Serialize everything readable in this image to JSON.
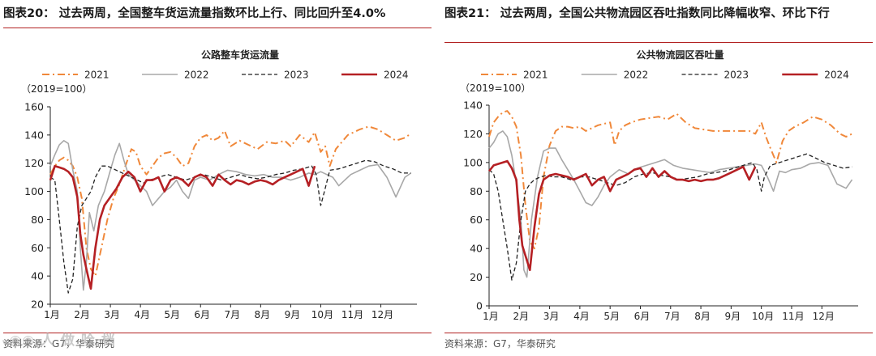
{
  "watermark": "ᵥ◉◉ 人 做 哈 档",
  "panels": [
    {
      "figure_title": "图表20： 过去两周，全国整车货运流量指数环比上行、同比回升至4.0%",
      "source": "资料来源：G7，华泰研究",
      "chart_data": {
        "type": "line",
        "title": "公路整车货运流量",
        "unit_label": "（2019=100）",
        "ylim": [
          20,
          160
        ],
        "yticks": [
          20,
          40,
          60,
          80,
          100,
          120,
          140,
          160
        ],
        "xticks": [
          "1月",
          "2月",
          "3月",
          "4月",
          "5月",
          "6月",
          "7月",
          "8月",
          "9月",
          "10月",
          "11月",
          "12月"
        ],
        "xlim": [
          1,
          13.2
        ],
        "legend_position": "top",
        "series": [
          {
            "name": "2021",
            "color": "#f0883a",
            "style": "dashdot",
            "x": [
              1.0,
              1.15,
              1.3,
              1.45,
              1.6,
              1.75,
              1.9,
              2.05,
              2.2,
              2.35,
              2.5,
              2.7,
              2.9,
              3.1,
              3.3,
              3.5,
              3.7,
              3.85,
              4.0,
              4.2,
              4.4,
              4.6,
              4.8,
              5.0,
              5.2,
              5.4,
              5.6,
              5.8,
              6.0,
              6.2,
              6.4,
              6.6,
              6.8,
              7.0,
              7.3,
              7.6,
              7.9,
              8.2,
              8.5,
              8.8,
              9.0,
              9.3,
              9.6,
              9.8,
              10.0,
              10.15,
              10.3,
              10.5,
              10.7,
              10.9,
              11.1,
              11.3,
              11.6,
              11.9,
              12.2,
              12.5,
              12.8,
              13.0
            ],
            "y": [
              112,
              118,
              122,
              124,
              122,
              118,
              110,
              95,
              60,
              45,
              40,
              60,
              80,
              95,
              105,
              118,
              130,
              128,
              118,
              112,
              118,
              124,
              127,
              128,
              124,
              118,
              120,
              132,
              138,
              140,
              136,
              138,
              143,
              132,
              136,
              133,
              130,
              135,
              134,
              136,
              132,
              140,
              135,
              142,
              128,
              132,
              118,
              130,
              135,
              140,
              142,
              144,
              146,
              144,
              140,
              136,
              138,
              141
            ]
          },
          {
            "name": "2022",
            "color": "#a8a8a8",
            "style": "solid",
            "x": [
              1.0,
              1.15,
              1.3,
              1.45,
              1.6,
              1.75,
              1.9,
              2.0,
              2.1,
              2.2,
              2.3,
              2.45,
              2.6,
              2.8,
              3.0,
              3.15,
              3.3,
              3.45,
              3.6,
              3.8,
              4.0,
              4.2,
              4.4,
              4.6,
              4.8,
              5.0,
              5.2,
              5.4,
              5.6,
              5.8,
              6.0,
              6.3,
              6.6,
              6.9,
              7.2,
              7.5,
              7.8,
              8.1,
              8.4,
              8.7,
              9.0,
              9.3,
              9.6,
              9.8,
              10.0,
              10.2,
              10.4,
              10.6,
              10.8,
              11.0,
              11.3,
              11.6,
              11.9,
              12.2,
              12.5,
              12.8,
              13.0
            ],
            "y": [
              118,
              126,
              133,
              136,
              134,
              115,
              100,
              60,
              30,
              50,
              85,
              72,
              90,
              100,
              115,
              126,
              134,
              122,
              112,
              108,
              104,
              100,
              90,
              95,
              100,
              103,
              108,
              100,
              95,
              108,
              110,
              108,
              112,
              115,
              114,
              112,
              111,
              112,
              110,
              110,
              108,
              110,
              113,
              112,
              114,
              112,
              110,
              104,
              108,
              112,
              115,
              118,
              119,
              110,
              96,
              110,
              113
            ]
          },
          {
            "name": "2023",
            "color": "#222222",
            "style": "dashed",
            "x": [
              1.0,
              1.15,
              1.3,
              1.45,
              1.6,
              1.75,
              1.9,
              2.05,
              2.2,
              2.35,
              2.5,
              2.7,
              2.9,
              3.1,
              3.3,
              3.5,
              3.7,
              3.9,
              4.1,
              4.3,
              4.6,
              4.9,
              5.2,
              5.5,
              5.8,
              6.1,
              6.4,
              6.7,
              7.0,
              7.3,
              7.6,
              7.9,
              8.2,
              8.5,
              8.8,
              9.1,
              9.4,
              9.7,
              9.85,
              10.0,
              10.1,
              10.3,
              10.6,
              10.9,
              11.2,
              11.5,
              11.8,
              12.1,
              12.4,
              12.7,
              13.0
            ],
            "y": [
              110,
              108,
              80,
              50,
              28,
              38,
              75,
              90,
              95,
              100,
              110,
              118,
              118,
              116,
              114,
              112,
              110,
              108,
              106,
              108,
              110,
              112,
              110,
              108,
              110,
              112,
              110,
              108,
              110,
              112,
              110,
              109,
              110,
              112,
              113,
              115,
              116,
              118,
              112,
              90,
              98,
              115,
              116,
              118,
              120,
              122,
              121,
              118,
              116,
              113,
              113
            ]
          },
          {
            "name": "2024",
            "color": "#b52024",
            "style": "solid-thick",
            "x": [
              1.0,
              1.15,
              1.3,
              1.45,
              1.6,
              1.75,
              1.9,
              2.0,
              2.1,
              2.2,
              2.35,
              2.5,
              2.65,
              2.8,
              3.0,
              3.2,
              3.4,
              3.6,
              3.8,
              4.0,
              4.2,
              4.4,
              4.6,
              4.8,
              5.0,
              5.2,
              5.4,
              5.6,
              5.8,
              6.0,
              6.2,
              6.4,
              6.6,
              6.8,
              7.0,
              7.2,
              7.4,
              7.6,
              7.8,
              8.0,
              8.2,
              8.4,
              8.6,
              8.8,
              9.0,
              9.2,
              9.4,
              9.6,
              9.8
            ],
            "y": [
              108,
              118,
              117,
              116,
              114,
              110,
              96,
              70,
              55,
              45,
              31,
              60,
              80,
              90,
              96,
              102,
              110,
              114,
              110,
              100,
              108,
              108,
              110,
              100,
              108,
              110,
              108,
              104,
              110,
              112,
              110,
              104,
              112,
              108,
              105,
              108,
              107,
              105,
              107,
              108,
              107,
              105,
              108,
              110,
              112,
              114,
              116,
              104,
              118
            ]
          }
        ]
      }
    },
    {
      "figure_title": "图表21： 过去两周，全国公共物流园区吞吐指数同比降幅收窄、环比下行",
      "source": "资料来源：G7，华泰研究",
      "chart_data": {
        "type": "line",
        "title": "公共物流园区吞吐量",
        "unit_label": "（2019=100）",
        "ylim": [
          0,
          140
        ],
        "yticks": [
          0,
          20,
          40,
          60,
          80,
          100,
          120,
          140
        ],
        "xticks": [
          "1月",
          "2月",
          "3月",
          "4月",
          "5月",
          "6月",
          "7月",
          "8月",
          "9月",
          "10月",
          "11月",
          "12月"
        ],
        "xlim": [
          1,
          13.2
        ],
        "legend_position": "top",
        "series": [
          {
            "name": "2021",
            "color": "#f0883a",
            "style": "dashdot",
            "x": [
              1.0,
              1.15,
              1.3,
              1.45,
              1.6,
              1.75,
              1.9,
              2.05,
              2.2,
              2.35,
              2.5,
              2.65,
              2.8,
              3.0,
              3.2,
              3.4,
              3.6,
              3.8,
              4.0,
              4.2,
              4.4,
              4.6,
              4.8,
              5.0,
              5.15,
              5.3,
              5.5,
              5.7,
              6.0,
              6.3,
              6.6,
              6.9,
              7.2,
              7.5,
              7.8,
              8.1,
              8.4,
              8.7,
              9.0,
              9.3,
              9.6,
              9.8,
              10.0,
              10.15,
              10.3,
              10.5,
              10.7,
              10.9,
              11.1,
              11.4,
              11.7,
              12.0,
              12.3,
              12.6,
              12.8,
              13.0
            ],
            "y": [
              118,
              128,
              132,
              135,
              136,
              132,
              125,
              105,
              70,
              45,
              40,
              55,
              90,
              112,
              122,
              125,
              125,
              124,
              125,
              122,
              124,
              126,
              127,
              128,
              112,
              122,
              126,
              128,
              130,
              131,
              132,
              130,
              134,
              128,
              124,
              123,
              122,
              122,
              122,
              122,
              122,
              120,
              128,
              118,
              110,
              100,
              115,
              122,
              125,
              128,
              132,
              130,
              126,
              120,
              118,
              120
            ]
          },
          {
            "name": "2022",
            "color": "#a8a8a8",
            "style": "solid",
            "x": [
              1.0,
              1.15,
              1.3,
              1.45,
              1.6,
              1.75,
              1.9,
              2.05,
              2.15,
              2.25,
              2.4,
              2.6,
              2.8,
              3.0,
              3.2,
              3.4,
              3.6,
              3.8,
              4.0,
              4.2,
              4.4,
              4.6,
              4.8,
              5.0,
              5.3,
              5.6,
              5.9,
              6.2,
              6.5,
              6.8,
              7.1,
              7.4,
              7.7,
              8.0,
              8.3,
              8.6,
              8.9,
              9.2,
              9.5,
              9.8,
              10.0,
              10.2,
              10.4,
              10.6,
              10.8,
              11.0,
              11.3,
              11.6,
              11.9,
              12.2,
              12.5,
              12.8,
              13.0
            ],
            "y": [
              110,
              114,
              120,
              122,
              118,
              105,
              85,
              60,
              25,
              20,
              60,
              90,
              108,
              110,
              110,
              102,
              95,
              88,
              80,
              72,
              70,
              76,
              84,
              90,
              95,
              92,
              96,
              98,
              100,
              102,
              98,
              96,
              95,
              94,
              93,
              95,
              96,
              97,
              98,
              99,
              98,
              90,
              80,
              94,
              93,
              95,
              96,
              99,
              100,
              98,
              85,
              82,
              88
            ]
          },
          {
            "name": "2023",
            "color": "#222222",
            "style": "dashed",
            "x": [
              1.0,
              1.15,
              1.3,
              1.45,
              1.6,
              1.75,
              1.9,
              2.05,
              2.2,
              2.35,
              2.5,
              2.7,
              2.9,
              3.1,
              3.4,
              3.7,
              4.0,
              4.3,
              4.6,
              4.9,
              5.2,
              5.5,
              5.8,
              6.1,
              6.4,
              6.7,
              7.0,
              7.3,
              7.6,
              7.9,
              8.2,
              8.5,
              8.8,
              9.1,
              9.4,
              9.7,
              9.85,
              10.0,
              10.1,
              10.3,
              10.6,
              10.9,
              11.2,
              11.5,
              11.8,
              12.1,
              12.4,
              12.7,
              13.0
            ],
            "y": [
              95,
              92,
              80,
              60,
              40,
              18,
              30,
              60,
              80,
              85,
              88,
              90,
              91,
              90,
              90,
              88,
              90,
              90,
              88,
              86,
              84,
              86,
              90,
              92,
              93,
              91,
              90,
              88,
              89,
              90,
              92,
              93,
              94,
              96,
              98,
              100,
              95,
              80,
              90,
              98,
              100,
              102,
              104,
              106,
              103,
              100,
              98,
              96,
              97
            ]
          },
          {
            "name": "2024",
            "color": "#b52024",
            "style": "solid-thick",
            "x": [
              1.0,
              1.15,
              1.3,
              1.45,
              1.6,
              1.75,
              1.9,
              2.0,
              2.1,
              2.2,
              2.35,
              2.5,
              2.65,
              2.8,
              3.0,
              3.2,
              3.4,
              3.6,
              3.8,
              4.0,
              4.2,
              4.4,
              4.6,
              4.8,
              5.0,
              5.2,
              5.4,
              5.6,
              5.8,
              6.0,
              6.2,
              6.4,
              6.6,
              6.8,
              7.0,
              7.2,
              7.4,
              7.6,
              7.8,
              8.0,
              8.2,
              8.4,
              8.6,
              8.8,
              9.0,
              9.2,
              9.4,
              9.6,
              9.8
            ],
            "y": [
              94,
              98,
              99,
              100,
              101,
              96,
              88,
              60,
              42,
              35,
              25,
              55,
              78,
              88,
              91,
              92,
              91,
              90,
              88,
              90,
              92,
              84,
              88,
              90,
              80,
              88,
              90,
              92,
              95,
              96,
              90,
              96,
              90,
              94,
              90,
              88,
              88,
              87,
              88,
              87,
              88,
              88,
              89,
              91,
              93,
              95,
              97,
              88,
              97
            ]
          }
        ]
      }
    }
  ]
}
